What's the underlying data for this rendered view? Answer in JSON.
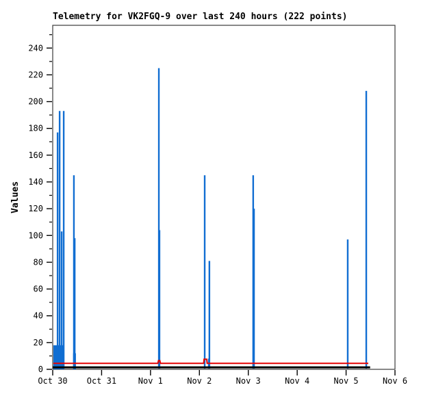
{
  "title": "Telemetry for VK2FGQ-9 over last 240 hours (222 points)",
  "colors": {
    "blue": "#116ed2",
    "red": "#e60000",
    "black": "#000000",
    "frame": "#3a3a3a"
  },
  "chart_data": {
    "type": "line",
    "title": "Telemetry for VK2FGQ-9 over last 240 hours (222 points)",
    "xlabel": "",
    "ylabel": "Values",
    "ylim": [
      0,
      257
    ],
    "xlim_hours": [
      0,
      168
    ],
    "grid": "off",
    "legend_position": "none",
    "y_ticks": [
      0,
      20,
      40,
      60,
      80,
      100,
      120,
      140,
      160,
      180,
      200,
      220,
      240
    ],
    "y_minor_tick_step": 10,
    "x_ticks": [
      {
        "hour": 0,
        "label": "Oct 30"
      },
      {
        "hour": 24,
        "label": "Oct 31"
      },
      {
        "hour": 48,
        "label": "Nov 1"
      },
      {
        "hour": 72,
        "label": "Nov 2"
      },
      {
        "hour": 96,
        "label": "Nov 3"
      },
      {
        "hour": 120,
        "label": "Nov 4"
      },
      {
        "hour": 144,
        "label": "Nov 5"
      },
      {
        "hour": 168,
        "label": "Nov 6"
      }
    ],
    "series": [
      {
        "name": "telemetry-values-blue",
        "color_key": "blue",
        "style": "impulses",
        "impulse_points": [
          [
            2.4,
            177
          ],
          [
            3.4,
            193
          ],
          [
            4.4,
            103
          ],
          [
            5.4,
            193
          ],
          [
            10.4,
            145
          ],
          [
            10.8,
            98
          ],
          [
            52.1,
            225
          ],
          [
            52.4,
            104
          ],
          [
            74.6,
            145
          ],
          [
            76.6,
            8
          ],
          [
            76.9,
            81
          ],
          [
            98.4,
            145
          ],
          [
            98.8,
            120
          ],
          [
            144.8,
            97
          ],
          [
            153.9,
            208
          ]
        ],
        "dense_blocks": [
          {
            "from_hour": 0.34,
            "to_hour": 5.6,
            "value": 18
          },
          {
            "from_hour": 10.0,
            "to_hour": 11.4,
            "value": 12
          }
        ]
      },
      {
        "name": "telemetry-values-red",
        "color_key": "red",
        "style": "line",
        "line_width": 2,
        "points": [
          [
            0.3,
            4.5
          ],
          [
            51.6,
            4.5
          ],
          [
            51.9,
            6.5
          ],
          [
            52.6,
            6.5
          ],
          [
            52.9,
            4.5
          ],
          [
            74.1,
            4.5
          ],
          [
            74.3,
            7.5
          ],
          [
            75.6,
            7.5
          ],
          [
            75.8,
            4.5
          ],
          [
            154.9,
            4.5
          ]
        ]
      },
      {
        "name": "telemetry-values-black",
        "color_key": "black",
        "style": "line",
        "line_width": 3,
        "points": [
          [
            0.0,
            1.5
          ],
          [
            155.8,
            1.5
          ]
        ]
      }
    ]
  },
  "plot_geometry_note": "x axis spans Oct 30 00:00 to Nov 6 00:00 (168 h shown)"
}
